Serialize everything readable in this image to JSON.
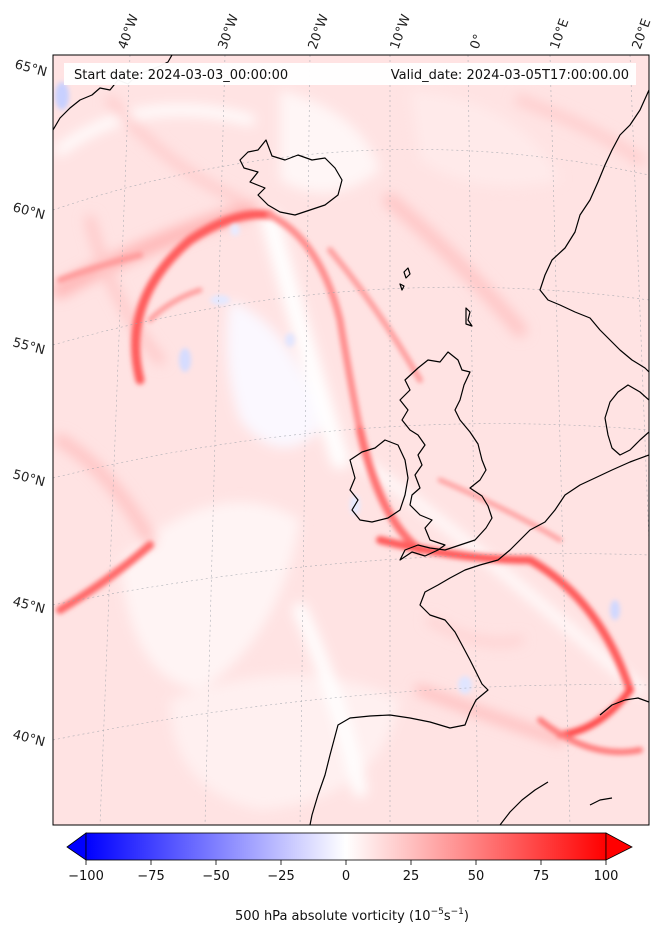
{
  "header": {
    "start_date": "Start date: 2024-03-03_00:00:00",
    "valid_date": "Valid_date: 2024-03-05T17:00:00.00"
  },
  "map": {
    "projection": "stereographic",
    "longitude_labels": [
      "40°W",
      "30°W",
      "20°W",
      "10°W",
      "0°",
      "10°E",
      "20°E"
    ],
    "latitude_labels": [
      "65°N",
      "60°N",
      "55°N",
      "50°N",
      "45°N",
      "40°N"
    ],
    "field": "500 hPa absolute vorticity",
    "colormap": "bwr",
    "coastline_color": "#000000",
    "gridline_style": "dotted"
  },
  "colorbar": {
    "ticks": [
      "−100",
      "−75",
      "−50",
      "−25",
      "0",
      "25",
      "50",
      "75",
      "100"
    ],
    "label_prefix": "500 hPa absolute vorticity (10",
    "label_exp1": "−5",
    "label_mid": "s",
    "label_exp2": "−1",
    "label_suffix": ")",
    "min": -100,
    "max": 100,
    "low_color": "#0000ff",
    "mid_color": "#ffffff",
    "high_color": "#ff0000",
    "extend": "both"
  }
}
